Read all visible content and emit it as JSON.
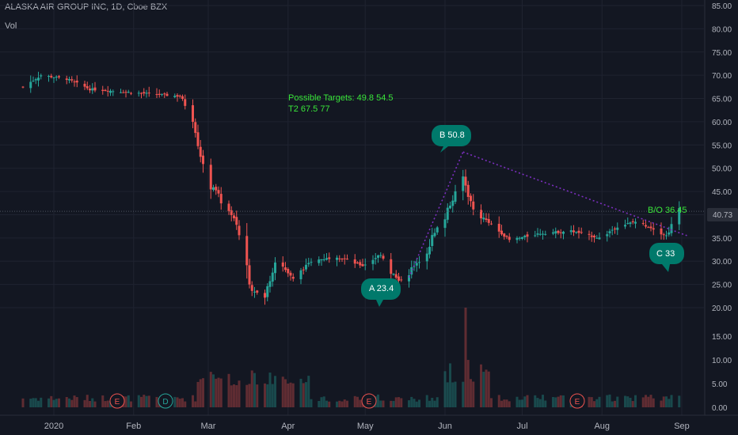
{
  "header": {
    "title": "ALASKA AIR GROUP INC, 1D, Cboe BZX",
    "volume_label": "Vol"
  },
  "price_axis": {
    "ticks": [
      "85.00",
      "80.00",
      "75.00",
      "70.00",
      "65.00",
      "60.00",
      "55.00",
      "50.00",
      "45.00",
      "40.00",
      "35.00",
      "30.00",
      "25.00",
      "20.00"
    ],
    "last_price": "40.73",
    "last_price_color": "#2a2e39"
  },
  "volume_axis": {
    "ticks": [
      "15.00",
      "10.00",
      "5.00",
      "0.00"
    ]
  },
  "time_axis": {
    "labels": [
      "2020",
      "Feb",
      "Mar",
      "Apr",
      "May",
      "Jun",
      "Jul",
      "Aug",
      "Sep"
    ]
  },
  "annotations": {
    "targets_line1": "Possible Targets:  49.8   54.5",
    "targets_line2": "T2  67.5    77",
    "point_a": "A  23.4",
    "point_b": "B  50.8",
    "point_c": "C  33",
    "breakout": "B/O 36.45"
  },
  "events": [
    {
      "letter": "E",
      "color": "#ef5350"
    },
    {
      "letter": "D",
      "color": "#26a69a"
    },
    {
      "letter": "E",
      "color": "#ef5350"
    },
    {
      "letter": "E",
      "color": "#ef5350"
    }
  ],
  "colors": {
    "up": "#26a69a",
    "down": "#ef5350",
    "bubble": "#00796b",
    "pattern_line": "#7b2fbe",
    "note": "#39e639"
  },
  "chart_data": {
    "type": "candlestick",
    "title": "ALASKA AIR GROUP INC, 1D, Cboe BZX",
    "y_unit": "USD",
    "ylim": [
      18,
      86
    ],
    "key_points": [
      {
        "label": "A",
        "date": "2020-05-14",
        "value": 23.4
      },
      {
        "label": "B",
        "date": "2020-06-08",
        "value": 50.8
      },
      {
        "label": "C",
        "date": "2020-08-25",
        "value": 33
      },
      {
        "label": "B/O",
        "date": "2020-08-31",
        "value": 36.45
      }
    ],
    "targets": [
      49.8,
      54.5,
      67.5,
      77
    ],
    "last_close": 40.73,
    "approx_close_path": [
      {
        "date": "2019-12-20",
        "close": 67.5
      },
      {
        "date": "2019-12-27",
        "close": 70.0
      },
      {
        "date": "2020-01-06",
        "close": 69.2
      },
      {
        "date": "2020-01-15",
        "close": 67.0
      },
      {
        "date": "2020-01-27",
        "close": 66.5
      },
      {
        "date": "2020-02-07",
        "close": 66.0
      },
      {
        "date": "2020-02-19",
        "close": 65.5
      },
      {
        "date": "2020-02-24",
        "close": 61.0
      },
      {
        "date": "2020-02-28",
        "close": 50.0
      },
      {
        "date": "2020-03-06",
        "close": 43.0
      },
      {
        "date": "2020-03-12",
        "close": 38.0
      },
      {
        "date": "2020-03-18",
        "close": 24.0
      },
      {
        "date": "2020-03-23",
        "close": 22.0
      },
      {
        "date": "2020-03-27",
        "close": 31.0
      },
      {
        "date": "2020-04-03",
        "close": 26.0
      },
      {
        "date": "2020-04-10",
        "close": 30.0
      },
      {
        "date": "2020-04-20",
        "close": 31.0
      },
      {
        "date": "2020-04-30",
        "close": 29.0
      },
      {
        "date": "2020-05-07",
        "close": 31.5
      },
      {
        "date": "2020-05-14",
        "close": 25.5
      },
      {
        "date": "2020-05-22",
        "close": 30.0
      },
      {
        "date": "2020-05-29",
        "close": 37.0
      },
      {
        "date": "2020-06-03",
        "close": 42.0
      },
      {
        "date": "2020-06-08",
        "close": 48.0
      },
      {
        "date": "2020-06-12",
        "close": 41.0
      },
      {
        "date": "2020-06-19",
        "close": 38.0
      },
      {
        "date": "2020-06-26",
        "close": 34.5
      },
      {
        "date": "2020-07-08",
        "close": 36.0
      },
      {
        "date": "2020-07-20",
        "close": 36.5
      },
      {
        "date": "2020-07-31",
        "close": 35.0
      },
      {
        "date": "2020-08-07",
        "close": 37.5
      },
      {
        "date": "2020-08-14",
        "close": 38.5
      },
      {
        "date": "2020-08-21",
        "close": 37.0
      },
      {
        "date": "2020-08-26",
        "close": 35.5
      },
      {
        "date": "2020-08-31",
        "close": 40.73
      }
    ]
  }
}
